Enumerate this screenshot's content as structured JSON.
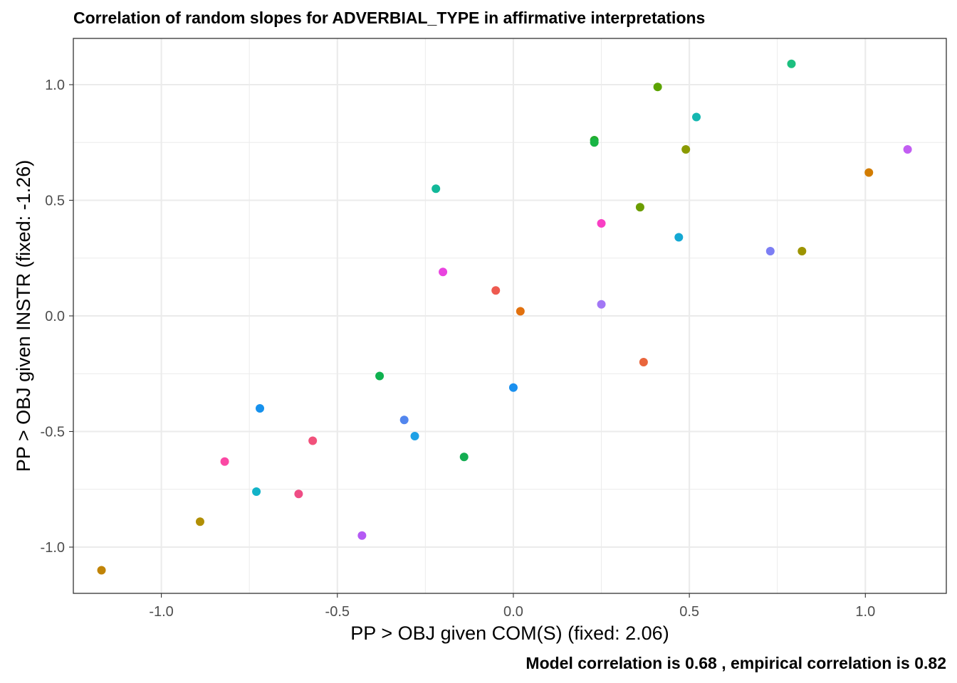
{
  "chart_data": {
    "type": "scatter",
    "title": "Correlation of random slopes for ADVERBIAL_TYPE in affirmative interpretations",
    "xlabel": "PP > OBJ given COM(S) (fixed: 2.06)",
    "ylabel": "PP > OBJ given INSTR (fixed: -1.26)",
    "caption": "Model correlation is  0.68 , empirical correlation is 0.82",
    "xlim": [
      -1.25,
      1.23
    ],
    "ylim": [
      -1.2,
      1.2
    ],
    "x_ticks": [
      -1.0,
      -0.5,
      0.0,
      0.5,
      1.0
    ],
    "x_tick_labels": [
      "-1.0",
      "-0.5",
      "0.0",
      "0.5",
      "1.0"
    ],
    "y_ticks": [
      -1.0,
      -0.5,
      0.0,
      0.5,
      1.0
    ],
    "y_tick_labels": [
      "-1.0",
      "-0.5",
      "0.0",
      "0.5",
      "1.0"
    ],
    "grid": true,
    "legend": "none",
    "points": [
      {
        "x": 0.79,
        "y": 1.09,
        "color": "#1dbf7f"
      },
      {
        "x": 0.41,
        "y": 0.99,
        "color": "#5ba300"
      },
      {
        "x": 0.52,
        "y": 0.86,
        "color": "#15b7b0"
      },
      {
        "x": 0.23,
        "y": 0.76,
        "color": "#22ad2e"
      },
      {
        "x": 0.23,
        "y": 0.75,
        "color": "#18b545"
      },
      {
        "x": 0.49,
        "y": 0.72,
        "color": "#8a9a00"
      },
      {
        "x": 1.12,
        "y": 0.72,
        "color": "#c25ef2"
      },
      {
        "x": 1.01,
        "y": 0.62,
        "color": "#d27c00"
      },
      {
        "x": -0.22,
        "y": 0.55,
        "color": "#12b899"
      },
      {
        "x": 0.36,
        "y": 0.47,
        "color": "#6b9d00"
      },
      {
        "x": 0.25,
        "y": 0.4,
        "color": "#f93fc4"
      },
      {
        "x": 0.47,
        "y": 0.34,
        "color": "#14a8d3"
      },
      {
        "x": 0.73,
        "y": 0.28,
        "color": "#7c7ef4"
      },
      {
        "x": 0.82,
        "y": 0.28,
        "color": "#9d9400"
      },
      {
        "x": -0.2,
        "y": 0.19,
        "color": "#e943df"
      },
      {
        "x": -0.05,
        "y": 0.11,
        "color": "#ee5a50"
      },
      {
        "x": 0.02,
        "y": 0.02,
        "color": "#e2710e"
      },
      {
        "x": 0.25,
        "y": 0.05,
        "color": "#a277f5"
      },
      {
        "x": 0.37,
        "y": -0.2,
        "color": "#e9653c"
      },
      {
        "x": -0.38,
        "y": -0.26,
        "color": "#0fb14f"
      },
      {
        "x": 0.0,
        "y": -0.31,
        "color": "#1a90ef"
      },
      {
        "x": -0.72,
        "y": -0.4,
        "color": "#1691ed"
      },
      {
        "x": -0.31,
        "y": -0.45,
        "color": "#5286ee"
      },
      {
        "x": -0.28,
        "y": -0.52,
        "color": "#1da0e6"
      },
      {
        "x": -0.57,
        "y": -0.54,
        "color": "#f1517b"
      },
      {
        "x": -0.14,
        "y": -0.61,
        "color": "#14ad52"
      },
      {
        "x": -0.82,
        "y": -0.63,
        "color": "#fb48a4"
      },
      {
        "x": -0.73,
        "y": -0.76,
        "color": "#12b3c8"
      },
      {
        "x": -0.61,
        "y": -0.77,
        "color": "#ef4d85"
      },
      {
        "x": -0.89,
        "y": -0.89,
        "color": "#b18f05"
      },
      {
        "x": -0.43,
        "y": -0.95,
        "color": "#b45af4"
      },
      {
        "x": -1.17,
        "y": -1.1,
        "color": "#c18407"
      }
    ]
  }
}
